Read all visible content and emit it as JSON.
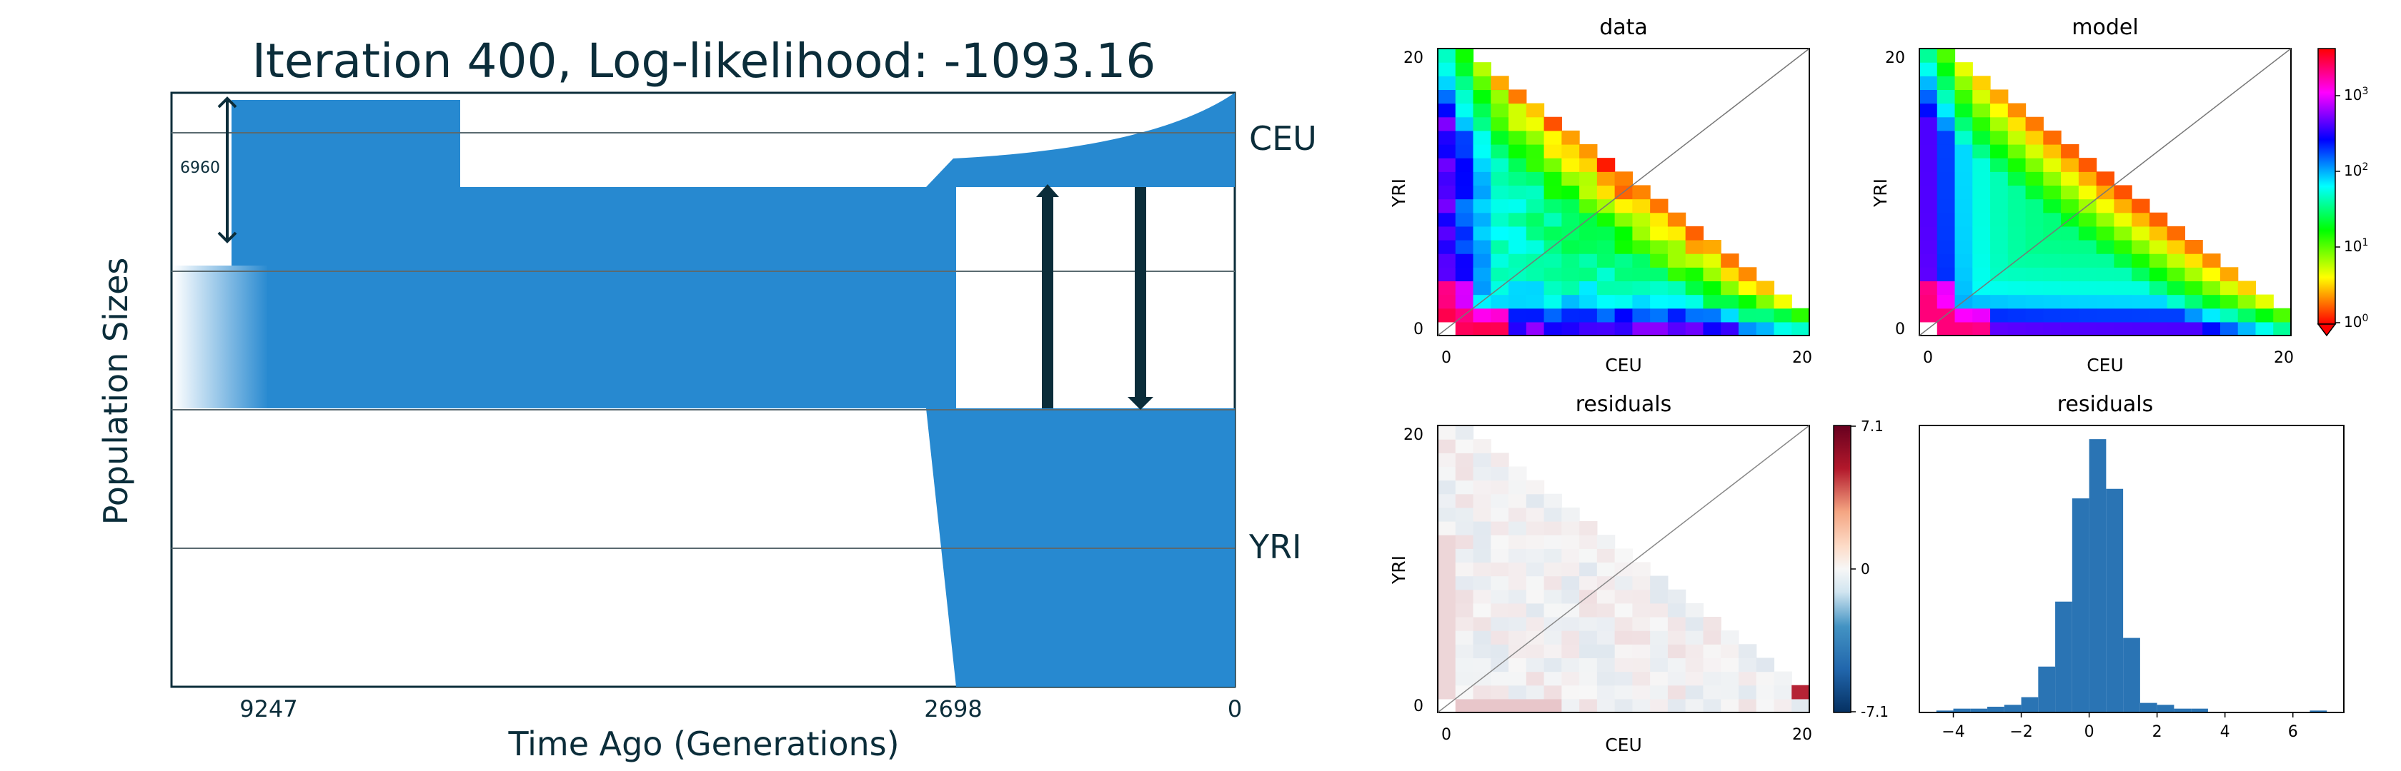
{
  "chart_data": [
    {
      "type": "demographic-model",
      "title": "Iteration 400, Log-likelihood: -1093.16",
      "xlabel": "Time Ago (Generations)",
      "ylabel": "Population Sizes",
      "x_ticks": [
        "9247",
        "2698",
        "0"
      ],
      "populations": [
        "CEU",
        "YRI"
      ],
      "scale_bar_label": "6960",
      "fill_color": "#2789d0",
      "dark_color": "#0b2d3a"
    },
    {
      "type": "heatmap",
      "title": "data",
      "xlabel": "CEU",
      "ylabel": "YRI",
      "x_ticks": [
        "0",
        "20"
      ],
      "y_ticks": [
        "0",
        "20"
      ],
      "colormap": "hsv",
      "scale": "log"
    },
    {
      "type": "heatmap",
      "title": "model",
      "xlabel": "CEU",
      "ylabel": "YRI",
      "x_ticks": [
        "0",
        "20"
      ],
      "y_ticks": [
        "0",
        "20"
      ],
      "colormap": "hsv",
      "scale": "log",
      "colorbar_ticks": [
        "10^0",
        "10^1",
        "10^2",
        "10^3"
      ]
    },
    {
      "type": "heatmap",
      "title": "residuals",
      "xlabel": "CEU",
      "ylabel": "YRI",
      "x_ticks": [
        "0",
        "20"
      ],
      "y_ticks": [
        "0",
        "20"
      ],
      "colormap": "RdBu_r",
      "colorbar_ticks": [
        "7.1",
        "0",
        "-7.1"
      ],
      "vmin": -7.1,
      "vmax": 7.1
    },
    {
      "type": "bar",
      "title": "residuals",
      "x_ticks": [
        "−4",
        "−2",
        "0",
        "2",
        "4",
        "6"
      ],
      "xlim": [
        -5,
        7.5
      ],
      "bins": [
        {
          "x0": -4.5,
          "x1": -4.0,
          "count": 1
        },
        {
          "x0": -4.0,
          "x1": -3.5,
          "count": 2
        },
        {
          "x0": -3.5,
          "x1": -3.0,
          "count": 2
        },
        {
          "x0": -3.0,
          "x1": -2.5,
          "count": 3
        },
        {
          "x0": -2.5,
          "x1": -2.0,
          "count": 4
        },
        {
          "x0": -2.0,
          "x1": -1.5,
          "count": 8
        },
        {
          "x0": -1.5,
          "x1": -1.0,
          "count": 24
        },
        {
          "x0": -1.0,
          "x1": -0.5,
          "count": 58
        },
        {
          "x0": -0.5,
          "x1": 0.0,
          "count": 112
        },
        {
          "x0": 0.0,
          "x1": 0.5,
          "count": 143
        },
        {
          "x0": 0.5,
          "x1": 1.0,
          "count": 117
        },
        {
          "x0": 1.0,
          "x1": 1.5,
          "count": 39
        },
        {
          "x0": 1.5,
          "x1": 2.0,
          "count": 5
        },
        {
          "x0": 2.0,
          "x1": 2.5,
          "count": 4
        },
        {
          "x0": 2.5,
          "x1": 3.0,
          "count": 2
        },
        {
          "x0": 3.0,
          "x1": 3.5,
          "count": 2
        },
        {
          "x0": 6.5,
          "x1": 7.0,
          "count": 1
        }
      ],
      "color": "#2a74b4"
    }
  ]
}
